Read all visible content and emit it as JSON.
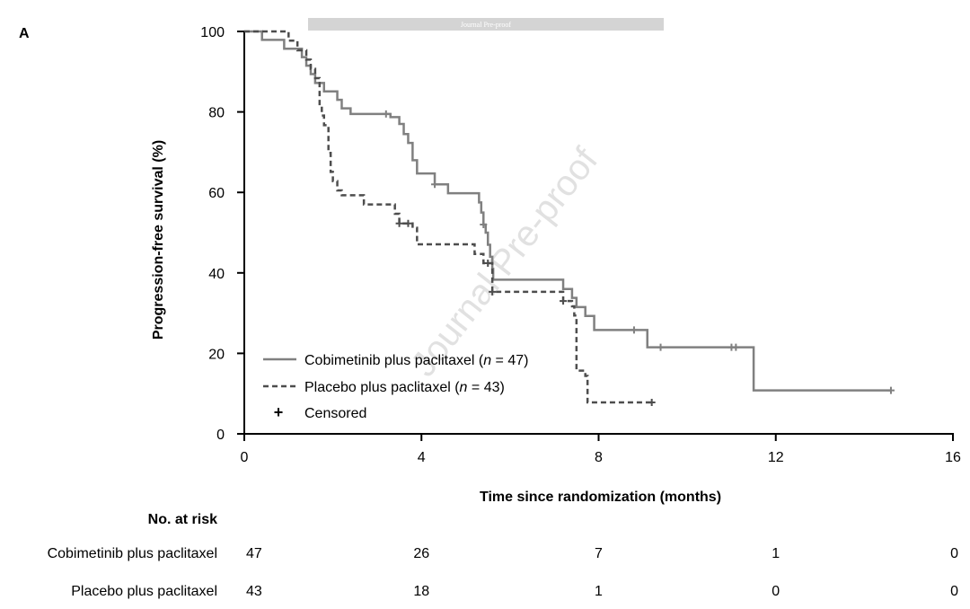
{
  "panel_label": "A",
  "banner": "Journal Pre-proof",
  "watermark": "Journal Pre-proof",
  "chart_data": {
    "type": "line",
    "subtype": "kaplan-meier",
    "title": "",
    "xlabel": "Time since randomization (months)",
    "ylabel": "Progression-free survival (%)",
    "xlim": [
      0,
      16
    ],
    "ylim": [
      0,
      100
    ],
    "xticks": [
      0,
      4,
      8,
      12,
      16
    ],
    "yticks": [
      0,
      20,
      40,
      60,
      80,
      100
    ],
    "grid": false,
    "legend_position": "bottom-left",
    "legend_censored_label": "Censored",
    "series": [
      {
        "name": "Cobimetinib plus paclitaxel (n = 47)",
        "label_parts": [
          "Cobimetinib plus paclitaxel (",
          "n",
          " = 47)"
        ],
        "color": "#808080",
        "dash": "solid",
        "steps": [
          [
            0,
            100
          ],
          [
            0.4,
            97.9
          ],
          [
            0.9,
            95.7
          ],
          [
            1.3,
            93.6
          ],
          [
            1.4,
            91.5
          ],
          [
            1.5,
            89.4
          ],
          [
            1.6,
            87.2
          ],
          [
            1.8,
            85.1
          ],
          [
            2.1,
            83
          ],
          [
            2.2,
            80.9
          ],
          [
            2.4,
            79.5
          ],
          [
            3.3,
            78.7
          ],
          [
            3.5,
            77
          ],
          [
            3.6,
            74.5
          ],
          [
            3.7,
            72.3
          ],
          [
            3.8,
            68
          ],
          [
            3.9,
            64.7
          ],
          [
            4.3,
            62
          ],
          [
            4.6,
            59.8
          ],
          [
            5.3,
            57.5
          ],
          [
            5.35,
            55
          ],
          [
            5.4,
            52
          ],
          [
            5.45,
            50
          ],
          [
            5.5,
            47
          ],
          [
            5.55,
            44
          ],
          [
            5.6,
            41
          ],
          [
            5.62,
            38.3
          ],
          [
            7.2,
            36
          ],
          [
            7.4,
            33.8
          ],
          [
            7.5,
            31.5
          ],
          [
            7.7,
            29.3
          ],
          [
            7.9,
            25.8
          ],
          [
            9.1,
            21.5
          ],
          [
            11.5,
            10.8
          ],
          [
            14.6,
            10.8
          ]
        ],
        "censored": [
          [
            3.2,
            79.5
          ],
          [
            4.3,
            62
          ],
          [
            5.4,
            52
          ],
          [
            8.8,
            25.8
          ],
          [
            9.4,
            21.5
          ],
          [
            11,
            21.5
          ],
          [
            11.1,
            21.5
          ],
          [
            14.6,
            10.8
          ]
        ]
      },
      {
        "name": "Placebo plus paclitaxel (n = 43)",
        "label_parts": [
          "Placebo plus paclitaxel (",
          "n",
          " = 43)"
        ],
        "color": "#4d4d4d",
        "dash": "dashed",
        "steps": [
          [
            0,
            100
          ],
          [
            1,
            97.7
          ],
          [
            1.2,
            95.3
          ],
          [
            1.4,
            93
          ],
          [
            1.5,
            90.7
          ],
          [
            1.6,
            88.4
          ],
          [
            1.7,
            81.4
          ],
          [
            1.75,
            79.1
          ],
          [
            1.8,
            76.7
          ],
          [
            1.9,
            69.8
          ],
          [
            1.95,
            65.1
          ],
          [
            2,
            62.8
          ],
          [
            2.1,
            60.5
          ],
          [
            2.2,
            59.3
          ],
          [
            2.7,
            57
          ],
          [
            3.4,
            54.7
          ],
          [
            3.5,
            52.3
          ],
          [
            3.8,
            51.2
          ],
          [
            3.9,
            47.1
          ],
          [
            5.2,
            44.7
          ],
          [
            5.4,
            42.4
          ],
          [
            5.6,
            35.3
          ],
          [
            7.2,
            33
          ],
          [
            7.4,
            31.7
          ],
          [
            7.45,
            29.4
          ],
          [
            7.5,
            15.7
          ],
          [
            7.7,
            14.4
          ],
          [
            7.75,
            7.8
          ],
          [
            9.2,
            7.8
          ]
        ],
        "censored": [
          [
            3.5,
            52.3
          ],
          [
            3.7,
            52.3
          ],
          [
            5.5,
            42.4
          ],
          [
            5.6,
            35.3
          ],
          [
            7.2,
            33
          ],
          [
            9.2,
            7.8
          ]
        ]
      }
    ],
    "risk_table": {
      "title": "No. at risk",
      "times": [
        0,
        4,
        8,
        12,
        16
      ],
      "rows": [
        {
          "label": "Cobimetinib plus paclitaxel",
          "values": [
            "47",
            "26",
            "7",
            "1",
            "0"
          ]
        },
        {
          "label": "Placebo plus paclitaxel",
          "values": [
            "43",
            "18",
            "1",
            "0",
            "0"
          ]
        }
      ]
    }
  }
}
